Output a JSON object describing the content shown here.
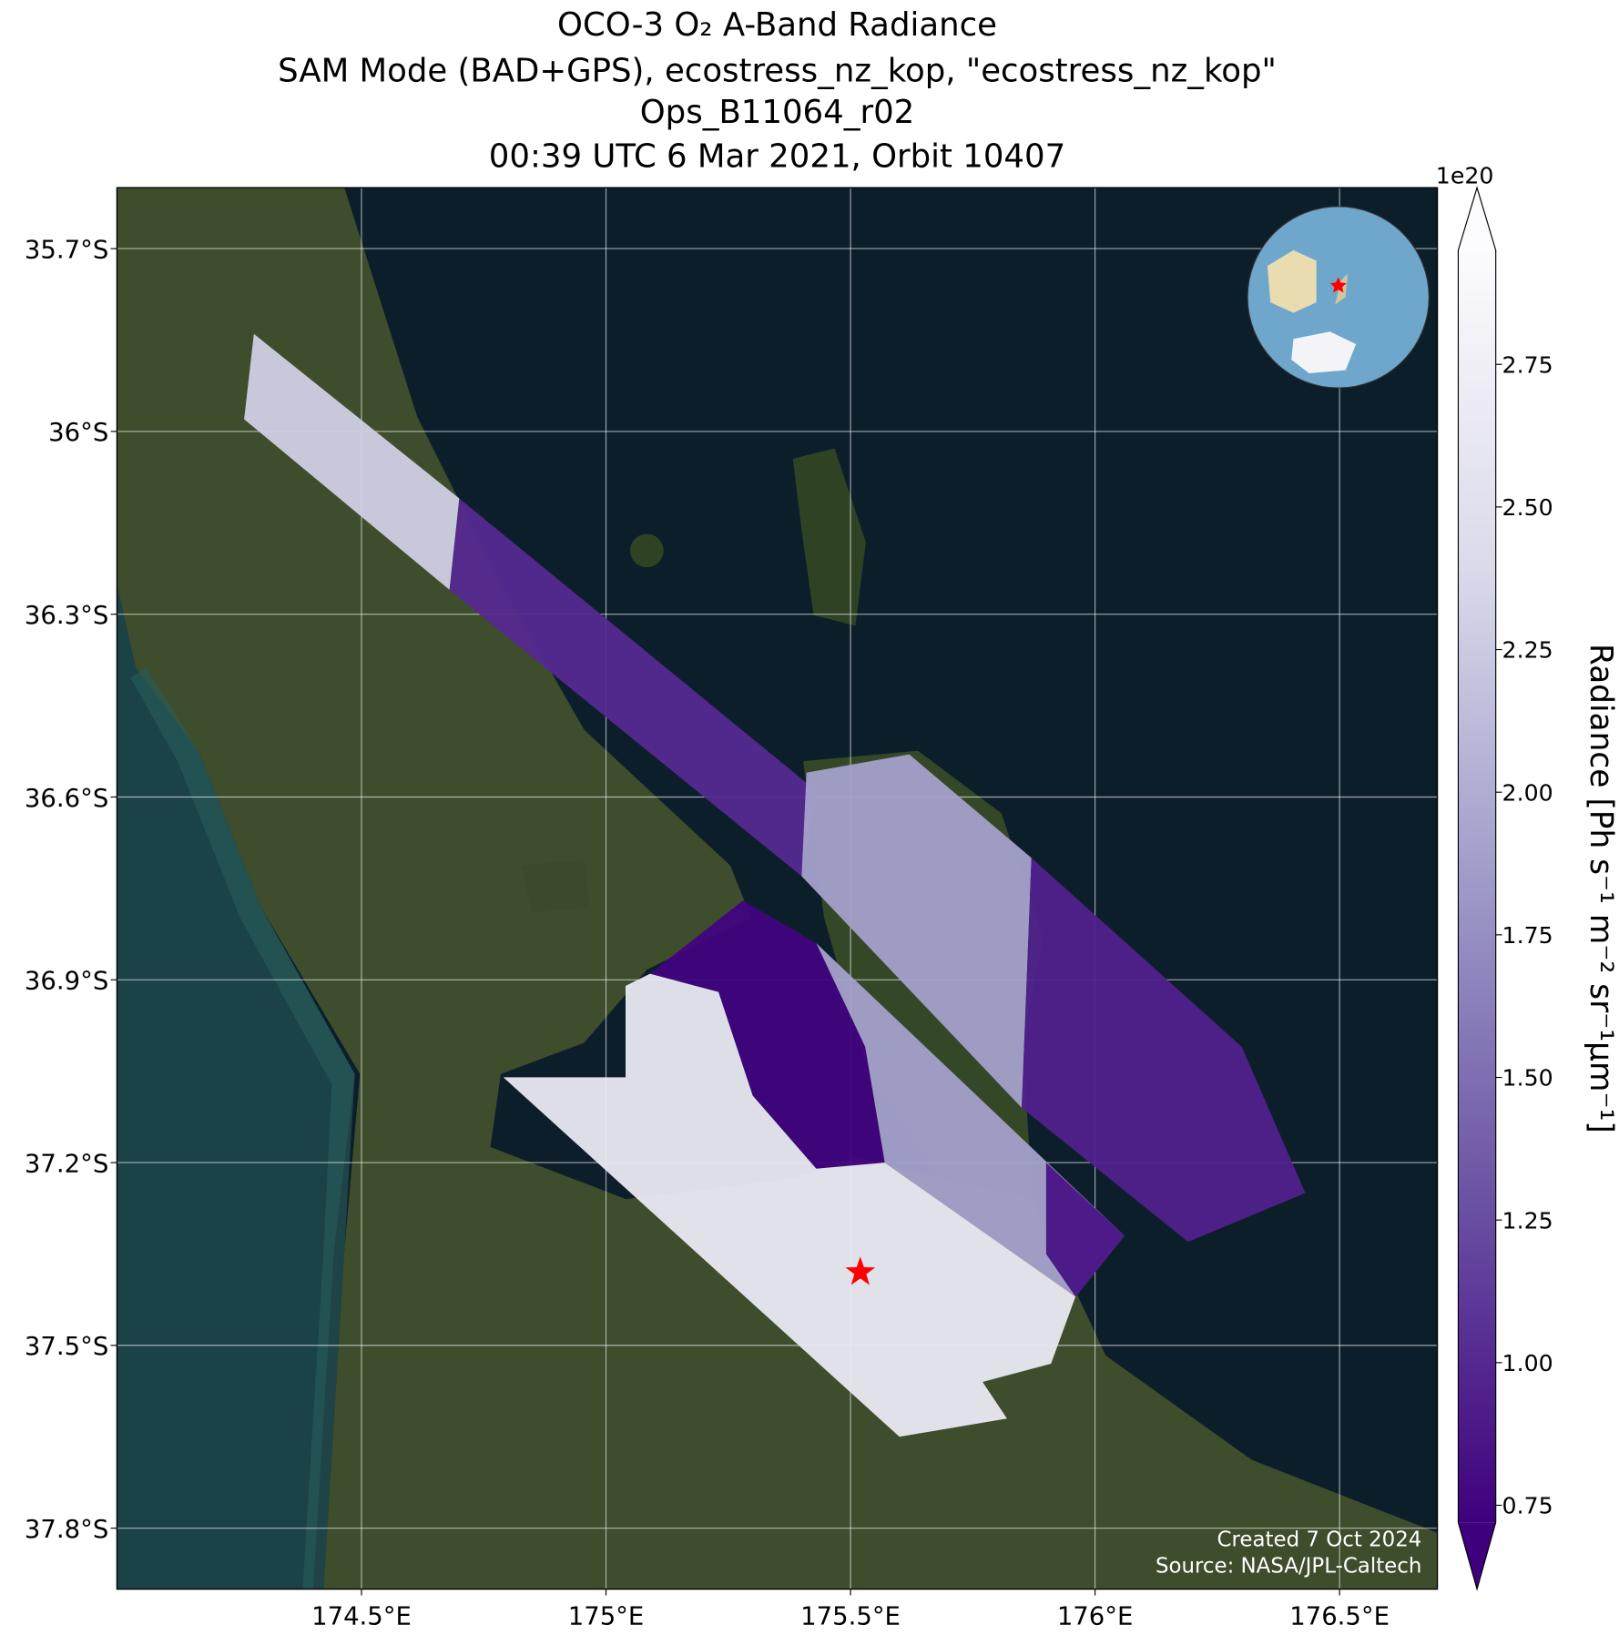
{
  "chart_data": {
    "type": "map",
    "title": [
      "OCO-3 O₂ A-Band Radiance",
      "SAM Mode (BAD+GPS), ecostress_nz_kop, \"ecostress_nz_kop\"",
      "Ops_B11064_r02",
      "00:39 UTC 6 Mar 2021, Orbit 10407"
    ],
    "xlim": [
      174.0,
      176.7
    ],
    "ylim": [
      -37.9,
      -35.6
    ],
    "xticks": [
      {
        "value": 174.5,
        "label": "174.5°E"
      },
      {
        "value": 175,
        "label": "175°E"
      },
      {
        "value": 175.5,
        "label": "175.5°E"
      },
      {
        "value": 176,
        "label": "176°E"
      },
      {
        "value": 176.5,
        "label": "176.5°E"
      }
    ],
    "yticks": [
      {
        "value": -35.7,
        "label": "35.7°S"
      },
      {
        "value": -36,
        "label": "36°S"
      },
      {
        "value": -36.3,
        "label": "36.3°S"
      },
      {
        "value": -36.6,
        "label": "36.6°S"
      },
      {
        "value": -36.9,
        "label": "36.9°S"
      },
      {
        "value": -37.2,
        "label": "37.2°S"
      },
      {
        "value": -37.5,
        "label": "37.5°S"
      },
      {
        "value": -37.8,
        "label": "37.8°S"
      }
    ],
    "grid": true,
    "colormap": [
      "#3f007d",
      "#6a51a3",
      "#9e9ac8",
      "#dadaeb",
      "#fcfbfd"
    ],
    "clim": [
      0.72,
      2.95
    ],
    "colorbar_label": "Radiance [Ph s⁻¹ m⁻² sr⁻¹μm⁻¹]",
    "colorbar_offset": "1e20",
    "colorbar_ticks": [
      0.75,
      {
        "value": 1,
        "label": "1.00"
      },
      1.25,
      {
        "value": 1.5,
        "label": "1.50"
      },
      1.75,
      {
        "value": 2,
        "label": "2.00"
      },
      2.25,
      {
        "value": 2.5,
        "label": "2.50"
      },
      2.75
    ],
    "swaths": [
      {
        "value": 2.3,
        "polygon": [
          [
            174.28,
            -35.84
          ],
          [
            174.7,
            -36.11
          ],
          [
            174.68,
            -36.26
          ],
          [
            174.26,
            -35.98
          ]
        ]
      },
      {
        "value": 1.0,
        "polygon": [
          [
            174.7,
            -36.11
          ],
          [
            175.43,
            -36.59
          ],
          [
            175.4,
            -36.73
          ],
          [
            174.68,
            -36.26
          ]
        ]
      },
      {
        "value": 1.9,
        "polygon": [
          [
            175.41,
            -36.56
          ],
          [
            175.62,
            -36.53
          ],
          [
            175.87,
            -36.7
          ],
          [
            175.85,
            -37.11
          ],
          [
            175.4,
            -36.73
          ]
        ]
      },
      {
        "value": 0.95,
        "polygon": [
          [
            175.87,
            -36.7
          ],
          [
            176.3,
            -37.01
          ],
          [
            176.43,
            -37.25
          ],
          [
            176.19,
            -37.33
          ],
          [
            175.85,
            -37.11
          ]
        ]
      },
      {
        "value": 0.75,
        "polygon": [
          [
            175.09,
            -36.89
          ],
          [
            175.28,
            -36.77
          ],
          [
            175.43,
            -36.84
          ],
          [
            175.53,
            -37.01
          ],
          [
            175.57,
            -37.2
          ],
          [
            175.43,
            -37.21
          ],
          [
            175.3,
            -37.09
          ],
          [
            175.23,
            -36.92
          ]
        ]
      },
      {
        "value": 2.65,
        "polygon": [
          [
            175.04,
            -36.91
          ],
          [
            175.09,
            -36.89
          ],
          [
            175.23,
            -36.92
          ],
          [
            175.3,
            -37.09
          ],
          [
            175.43,
            -37.21
          ],
          [
            175.57,
            -37.2
          ],
          [
            175.96,
            -37.42
          ],
          [
            175.91,
            -37.53
          ],
          [
            175.77,
            -37.56
          ],
          [
            175.82,
            -37.62
          ],
          [
            175.6,
            -37.65
          ],
          [
            174.79,
            -37.06
          ],
          [
            175.04,
            -37.06
          ]
        ]
      },
      {
        "value": 1.9,
        "polygon": [
          [
            175.43,
            -36.84
          ],
          [
            176.06,
            -37.32
          ],
          [
            175.96,
            -37.42
          ],
          [
            175.57,
            -37.2
          ],
          [
            175.53,
            -37.01
          ]
        ]
      },
      {
        "value": 0.85,
        "polygon": [
          [
            175.9,
            -37.2
          ],
          [
            176.06,
            -37.32
          ],
          [
            175.96,
            -37.42
          ],
          [
            175.9,
            -37.35
          ]
        ]
      }
    ],
    "target": {
      "lon": 175.52,
      "lat": -37.38,
      "color": "#ff0000"
    },
    "footer": [
      "Created 7 Oct 2024",
      "Source: NASA/JPL-Caltech"
    ]
  }
}
